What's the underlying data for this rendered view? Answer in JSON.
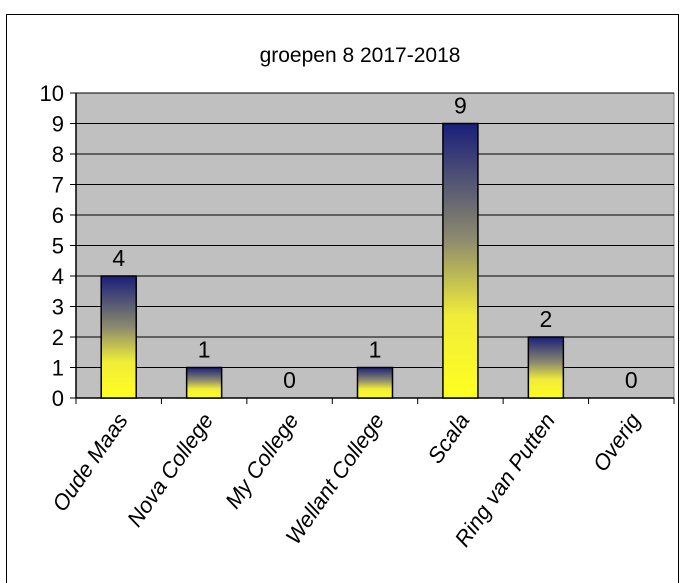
{
  "chart_data": {
    "type": "bar",
    "title": "groepen 8 2017-2018",
    "categories": [
      "Oude Maas",
      "Nova College",
      "My College",
      "Wellant College",
      "Scala",
      "Ring van Putten",
      "Overig"
    ],
    "values": [
      4,
      1,
      0,
      1,
      9,
      2,
      0
    ],
    "ylim": [
      0,
      10
    ],
    "yticks": [
      0,
      1,
      2,
      3,
      4,
      5,
      6,
      7,
      8,
      9,
      10
    ],
    "xlabel": "",
    "ylabel": "",
    "grid": true,
    "colors": {
      "plot_background": "#c0c0c0",
      "bar_top": "#1a1f7a",
      "bar_mid": "#8c8a6e",
      "bar_low": "#f0ec3a",
      "bar_bottom": "#ffff1e"
    }
  }
}
